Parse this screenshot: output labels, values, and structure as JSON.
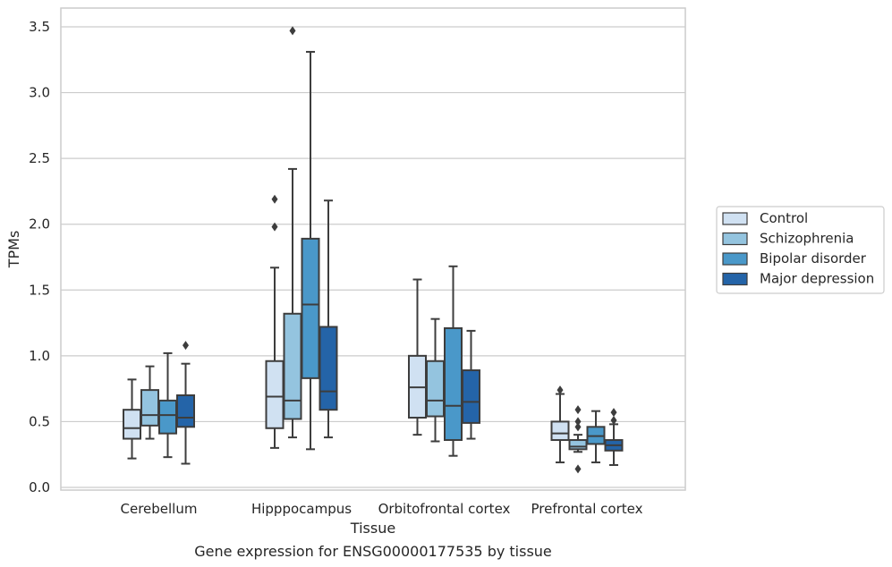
{
  "chart_data": {
    "type": "box",
    "title": "",
    "caption": "Gene expression for ENSG00000177535 by tissue",
    "xlabel": "Tissue",
    "ylabel": "TPMs",
    "ylim": [
      -0.01,
      3.65
    ],
    "yticks": [
      "0.0",
      "0.5",
      "1.0",
      "1.5",
      "2.0",
      "2.5",
      "3.0",
      "3.5"
    ],
    "grid": "horizontal",
    "legend_position": "right",
    "categories": [
      "Cerebellum",
      "Hipppocampus",
      "Orbitofrontal cortex",
      "Prefrontal cortex"
    ],
    "series": [
      {
        "name": "Control",
        "color": "#d0e1f2",
        "boxes": [
          {
            "whislo": 0.22,
            "q1": 0.37,
            "med": 0.45,
            "q3": 0.59,
            "whishi": 0.82,
            "fliers": []
          },
          {
            "whislo": 0.3,
            "q1": 0.45,
            "med": 0.69,
            "q3": 0.96,
            "whishi": 1.67,
            "fliers": [
              1.98,
              2.19
            ]
          },
          {
            "whislo": 0.4,
            "q1": 0.53,
            "med": 0.76,
            "q3": 1.0,
            "whishi": 1.58,
            "fliers": []
          },
          {
            "whislo": 0.19,
            "q1": 0.36,
            "med": 0.41,
            "q3": 0.5,
            "whishi": 0.71,
            "fliers": [
              0.74
            ]
          }
        ]
      },
      {
        "name": "Schizophrenia",
        "color": "#94c4df",
        "boxes": [
          {
            "whislo": 0.37,
            "q1": 0.47,
            "med": 0.55,
            "q3": 0.74,
            "whishi": 0.92,
            "fliers": []
          },
          {
            "whislo": 0.38,
            "q1": 0.52,
            "med": 0.66,
            "q3": 1.32,
            "whishi": 2.42,
            "fliers": [
              3.47
            ]
          },
          {
            "whislo": 0.35,
            "q1": 0.54,
            "med": 0.66,
            "q3": 0.96,
            "whishi": 1.28,
            "fliers": []
          },
          {
            "whislo": 0.27,
            "q1": 0.29,
            "med": 0.31,
            "q3": 0.36,
            "whishi": 0.4,
            "fliers": [
              0.14,
              0.46,
              0.5,
              0.59
            ]
          }
        ]
      },
      {
        "name": "Bipolar disorder",
        "color": "#4a98c9",
        "boxes": [
          {
            "whislo": 0.23,
            "q1": 0.41,
            "med": 0.55,
            "q3": 0.66,
            "whishi": 1.02,
            "fliers": []
          },
          {
            "whislo": 0.29,
            "q1": 0.83,
            "med": 1.39,
            "q3": 1.89,
            "whishi": 3.31,
            "fliers": []
          },
          {
            "whislo": 0.24,
            "q1": 0.36,
            "med": 0.62,
            "q3": 1.21,
            "whishi": 1.68,
            "fliers": []
          },
          {
            "whislo": 0.19,
            "q1": 0.33,
            "med": 0.39,
            "q3": 0.46,
            "whishi": 0.58,
            "fliers": []
          }
        ]
      },
      {
        "name": "Major depression",
        "color": "#2464a8",
        "boxes": [
          {
            "whislo": 0.18,
            "q1": 0.46,
            "med": 0.53,
            "q3": 0.7,
            "whishi": 0.94,
            "fliers": [
              1.08
            ]
          },
          {
            "whislo": 0.38,
            "q1": 0.59,
            "med": 0.73,
            "q3": 1.22,
            "whishi": 2.18,
            "fliers": []
          },
          {
            "whislo": 0.37,
            "q1": 0.49,
            "med": 0.65,
            "q3": 0.89,
            "whishi": 1.19,
            "fliers": []
          },
          {
            "whislo": 0.17,
            "q1": 0.28,
            "med": 0.32,
            "q3": 0.36,
            "whishi": 0.48,
            "fliers": [
              0.51,
              0.57
            ]
          }
        ]
      }
    ]
  }
}
